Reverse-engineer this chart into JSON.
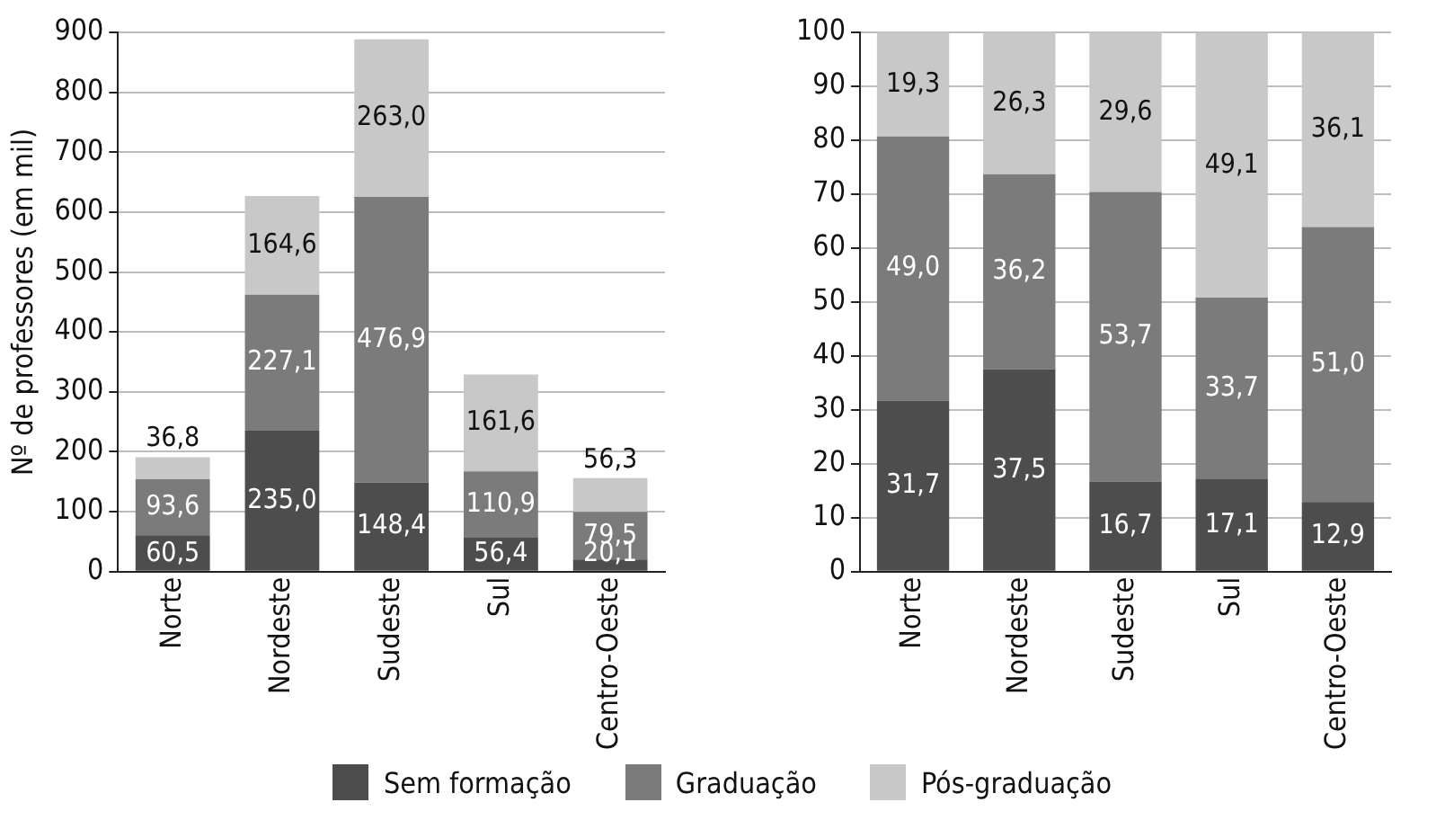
{
  "chart_data": [
    {
      "type": "bar",
      "stacked": true,
      "ylabel": "Nº de professores (em mil)",
      "categories": [
        "Norte",
        "Nordeste",
        "Sudeste",
        "Sul",
        "Centro-Oeste"
      ],
      "ylim": [
        0,
        900
      ],
      "yticks": [
        0,
        100,
        200,
        300,
        400,
        500,
        600,
        700,
        800,
        900
      ],
      "grid": "y",
      "legend": "bottom",
      "series": [
        {
          "name": "Sem formação",
          "color": "#4d4d4d",
          "values": [
            60.5,
            235.0,
            148.4,
            56.4,
            20.1
          ],
          "value_labels": [
            "60,5",
            "235,0",
            "148,4",
            "56,4",
            "20,1"
          ]
        },
        {
          "name": "Graduação",
          "color": "#7b7b7b",
          "values": [
            93.6,
            227.1,
            476.9,
            110.9,
            79.5
          ],
          "value_labels": [
            "93,6",
            "227,1",
            "476,9",
            "110,9",
            "79,5"
          ]
        },
        {
          "name": "Pós-graduação",
          "color": "#c8c8c8",
          "values": [
            36.8,
            164.6,
            263.0,
            161.6,
            56.3
          ],
          "value_labels": [
            "36,8",
            "164,6",
            "263,0",
            "161,6",
            "56,3"
          ]
        }
      ]
    },
    {
      "type": "bar",
      "stacked": true,
      "categories": [
        "Norte",
        "Nordeste",
        "Sudeste",
        "Sul",
        "Centro-Oeste"
      ],
      "ylim": [
        0,
        100
      ],
      "yticks": [
        0,
        10,
        20,
        30,
        40,
        50,
        60,
        70,
        80,
        90,
        100
      ],
      "grid": "y",
      "legend": "bottom",
      "series": [
        {
          "name": "Sem formação",
          "color": "#4d4d4d",
          "values": [
            31.7,
            37.5,
            16.7,
            17.1,
            12.9
          ],
          "value_labels": [
            "31,7",
            "37,5",
            "16,7",
            "17,1",
            "12,9"
          ]
        },
        {
          "name": "Graduação",
          "color": "#7b7b7b",
          "values": [
            49.0,
            36.2,
            53.7,
            33.7,
            51.0
          ],
          "value_labels": [
            "49,0",
            "36,2",
            "53,7",
            "33,7",
            "51,0"
          ]
        },
        {
          "name": "Pós-graduação",
          "color": "#c8c8c8",
          "values": [
            19.3,
            26.3,
            29.6,
            49.1,
            36.1
          ],
          "value_labels": [
            "19,3",
            "26,3",
            "29,6",
            "49,1",
            "36,1"
          ]
        }
      ]
    }
  ]
}
